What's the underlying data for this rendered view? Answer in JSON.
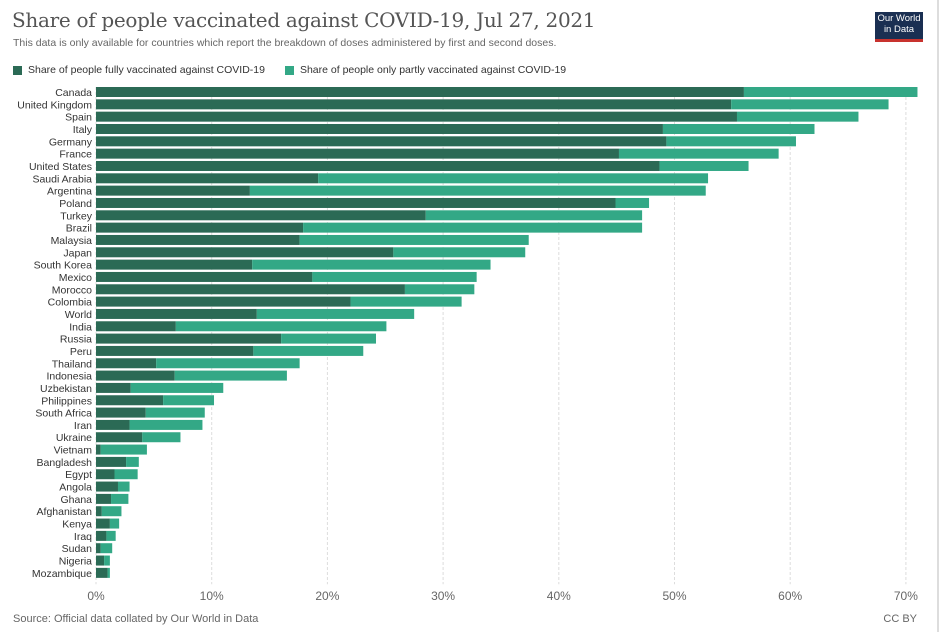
{
  "header": {
    "title": "Share of people vaccinated against COVID-19, Jul 27, 2021",
    "subtitle": "This data is only available for countries which report the breakdown of doses administered by first and second doses.",
    "logo_line1": "Our World",
    "logo_line2": "in Data"
  },
  "footer": {
    "source": "Source: Official data collated by Our World in Data",
    "license": "CC BY"
  },
  "colors": {
    "fully": "#2b6a55",
    "partly": "#33a886",
    "logo_bg": "#1a2f52",
    "logo_accent": "#c8322e"
  },
  "chart_data": {
    "type": "bar",
    "orientation": "horizontal",
    "stacked": true,
    "title": "Share of people vaccinated against COVID-19, Jul 27, 2021",
    "xlabel": "",
    "ylabel": "",
    "xlim": [
      0,
      71
    ],
    "x_ticks": [
      "0%",
      "10%",
      "20%",
      "30%",
      "40%",
      "50%",
      "60%",
      "70%"
    ],
    "x_tick_values": [
      0,
      10,
      20,
      30,
      40,
      50,
      60,
      70
    ],
    "grid": true,
    "legend_position": "top-left",
    "categories": [
      "Canada",
      "United Kingdom",
      "Spain",
      "Italy",
      "Germany",
      "France",
      "United States",
      "Saudi Arabia",
      "Argentina",
      "Poland",
      "Turkey",
      "Brazil",
      "Malaysia",
      "Japan",
      "South Korea",
      "Mexico",
      "Morocco",
      "Colombia",
      "World",
      "India",
      "Russia",
      "Peru",
      "Thailand",
      "Indonesia",
      "Uzbekistan",
      "Philippines",
      "South Africa",
      "Iran",
      "Ukraine",
      "Vietnam",
      "Bangladesh",
      "Egypt",
      "Angola",
      "Ghana",
      "Afghanistan",
      "Kenya",
      "Iraq",
      "Sudan",
      "Nigeria",
      "Mozambique"
    ],
    "series": [
      {
        "name": "Share of people fully vaccinated against COVID-19",
        "values": [
          56.0,
          54.9,
          55.4,
          49.0,
          49.3,
          45.2,
          48.7,
          19.2,
          13.3,
          44.9,
          28.5,
          17.9,
          17.6,
          25.7,
          13.5,
          18.7,
          26.7,
          22.0,
          13.9,
          6.9,
          16.0,
          13.6,
          5.2,
          6.8,
          3.0,
          5.8,
          4.3,
          2.9,
          4.0,
          0.4,
          2.6,
          1.6,
          1.9,
          1.3,
          0.5,
          1.2,
          0.9,
          0.4,
          0.7,
          1.0
        ]
      },
      {
        "name": "Share of people only partly vaccinated against COVID-19",
        "values": [
          15.0,
          13.6,
          10.5,
          13.1,
          11.2,
          13.8,
          7.7,
          33.7,
          39.4,
          2.9,
          18.7,
          29.3,
          19.8,
          11.4,
          20.6,
          14.2,
          6.0,
          9.6,
          13.6,
          18.2,
          8.2,
          9.5,
          12.4,
          9.7,
          8.0,
          4.4,
          5.1,
          6.3,
          3.3,
          4.0,
          1.1,
          2.0,
          1.0,
          1.5,
          1.7,
          0.8,
          0.8,
          1.0,
          0.5,
          0.2
        ]
      }
    ]
  }
}
